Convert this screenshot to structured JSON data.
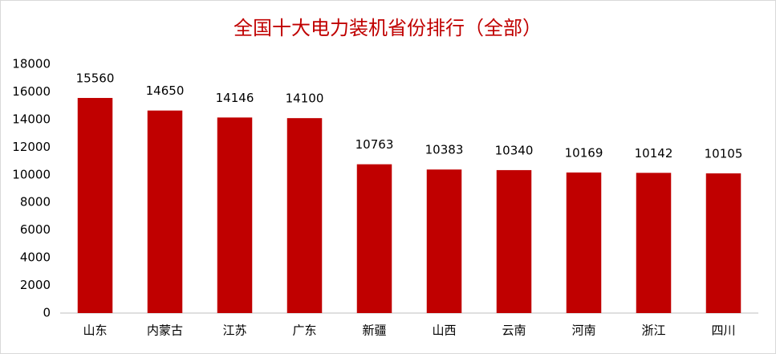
{
  "chart_data": {
    "type": "bar",
    "title": "全国十大电力装机省份排行（全部）",
    "categories": [
      "山东",
      "内蒙古",
      "江苏",
      "广东",
      "新疆",
      "山西",
      "云南",
      "河南",
      "浙江",
      "四川"
    ],
    "values": [
      15560,
      14650,
      14146,
      14100,
      10763,
      10383,
      10340,
      10169,
      10142,
      10105
    ],
    "color": "#c00000",
    "ylim": [
      0,
      18000
    ],
    "yticks": [
      0,
      2000,
      4000,
      6000,
      8000,
      10000,
      12000,
      14000,
      16000,
      18000
    ]
  }
}
